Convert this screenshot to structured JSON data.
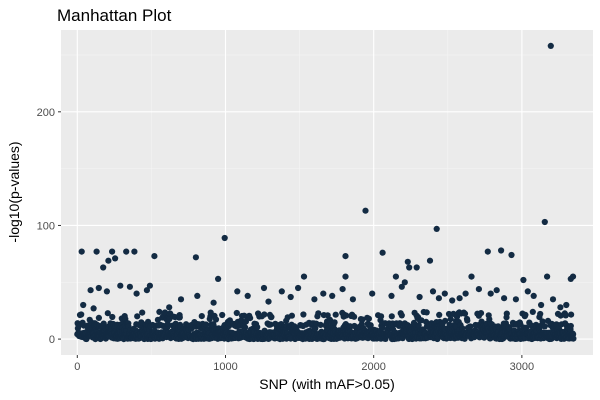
{
  "colors": {
    "panel": "#ebebeb",
    "point": "#132b43",
    "background": "#ffffff"
  },
  "chart_data": {
    "type": "scatter",
    "title": "Manhattan Plot",
    "xlabel": "SNP (with mAF>0.05)",
    "ylabel": "-log10(p-values)",
    "xlim": [
      -110,
      3480
    ],
    "ylim": [
      -14,
      272
    ],
    "x_ticks": [
      0,
      1000,
      2000,
      3000
    ],
    "x_tick_labels": [
      "0",
      "1000",
      "2000",
      "3000"
    ],
    "y_ticks": [
      0,
      100,
      200
    ],
    "y_tick_labels": [
      "0",
      "100",
      "200"
    ],
    "grid": true,
    "legend": "none",
    "x_count": 3350,
    "points": [
      [
        3195,
        258
      ],
      [
        1945,
        113
      ],
      [
        3155,
        103
      ],
      [
        2425,
        97
      ],
      [
        995,
        89
      ],
      [
        30,
        77
      ],
      [
        130,
        77
      ],
      [
        235,
        77
      ],
      [
        330,
        77
      ],
      [
        385,
        77
      ],
      [
        2060,
        76
      ],
      [
        2770,
        77
      ],
      [
        2860,
        78
      ],
      [
        520,
        73
      ],
      [
        800,
        72
      ],
      [
        1810,
        73
      ],
      [
        2930,
        74
      ],
      [
        210,
        69
      ],
      [
        255,
        71
      ],
      [
        2380,
        69
      ],
      [
        90,
        43
      ],
      [
        175,
        63
      ],
      [
        2230,
        68
      ],
      [
        2240,
        63
      ],
      [
        2290,
        63
      ],
      [
        2660,
        55
      ],
      [
        3010,
        52
      ],
      [
        3330,
        53
      ],
      [
        3345,
        55
      ],
      [
        1530,
        55
      ],
      [
        1810,
        55
      ],
      [
        3170,
        55
      ],
      [
        2150,
        55
      ],
      [
        950,
        53
      ],
      [
        40,
        30
      ],
      [
        110,
        27
      ],
      [
        145,
        45
      ],
      [
        200,
        42
      ],
      [
        290,
        47
      ],
      [
        355,
        46
      ],
      [
        400,
        40
      ],
      [
        470,
        43
      ],
      [
        490,
        47
      ],
      [
        620,
        28
      ],
      [
        700,
        35
      ],
      [
        810,
        38
      ],
      [
        920,
        32
      ],
      [
        1080,
        42
      ],
      [
        1150,
        38
      ],
      [
        1260,
        45
      ],
      [
        1290,
        33
      ],
      [
        1380,
        42
      ],
      [
        1440,
        37
      ],
      [
        1490,
        45
      ],
      [
        1600,
        35
      ],
      [
        1660,
        40
      ],
      [
        1720,
        38
      ],
      [
        1790,
        44
      ],
      [
        1860,
        35
      ],
      [
        1990,
        40
      ],
      [
        2120,
        38
      ],
      [
        2190,
        46
      ],
      [
        2210,
        50
      ],
      [
        2310,
        37
      ],
      [
        2400,
        42
      ],
      [
        2440,
        36
      ],
      [
        2480,
        40
      ],
      [
        2530,
        34
      ],
      [
        2580,
        36
      ],
      [
        2620,
        40
      ],
      [
        2710,
        44
      ],
      [
        2790,
        40
      ],
      [
        2830,
        43
      ],
      [
        2880,
        36
      ],
      [
        2960,
        35
      ],
      [
        3040,
        42
      ],
      [
        3080,
        38
      ],
      [
        3130,
        30
      ],
      [
        3210,
        35
      ],
      [
        3260,
        28
      ],
      [
        3300,
        30
      ]
    ]
  }
}
